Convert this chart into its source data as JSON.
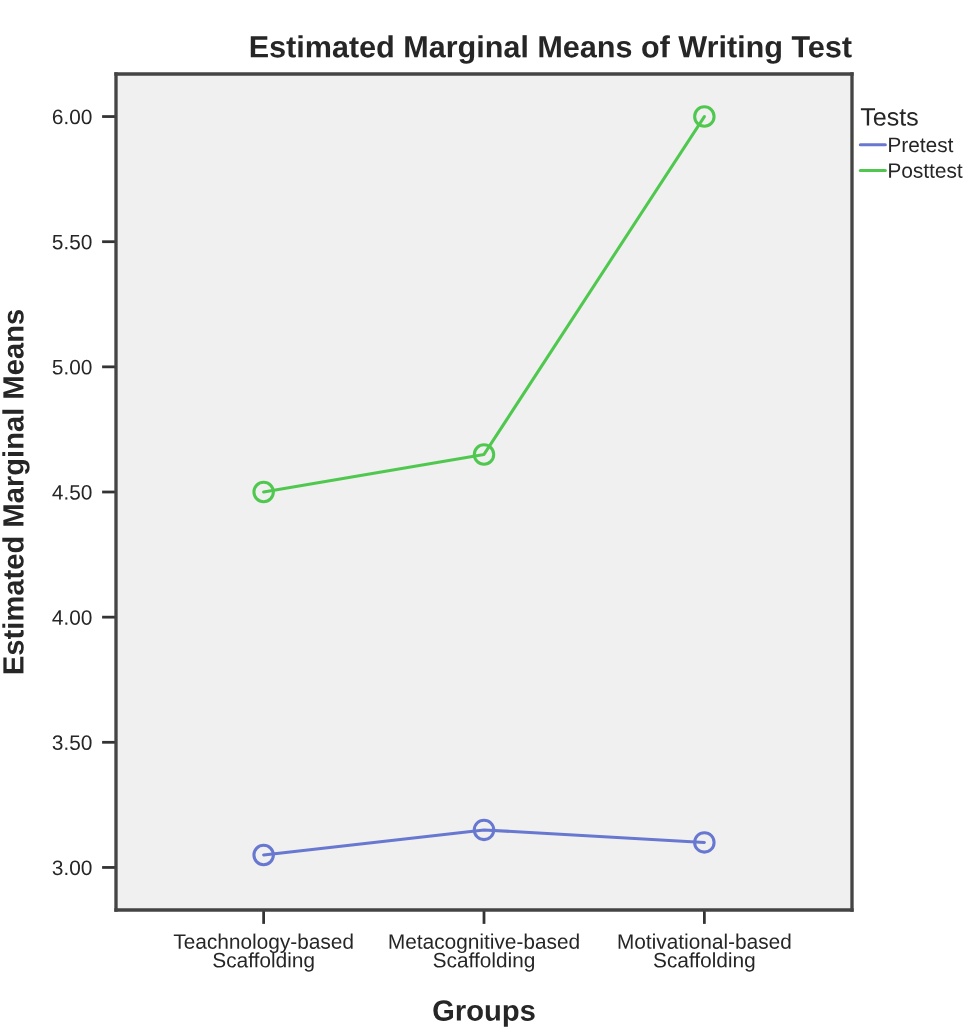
{
  "chart_data": {
    "type": "line",
    "title": "Estimated Marginal Means of Writing Test",
    "xlabel": "Groups",
    "ylabel": "Estimated Marginal Means",
    "legend_title": "Tests",
    "categories": [
      "Teachnology-based\nScaffolding",
      "Metacognitive-based\nScaffolding",
      "Motivational-based\nScaffolding"
    ],
    "series": [
      {
        "name": "Pretest",
        "color": "#6878d0",
        "values": [
          3.05,
          3.15,
          3.1
        ]
      },
      {
        "name": "Posttest",
        "color": "#50c850",
        "values": [
          4.5,
          4.65,
          6.0
        ]
      }
    ],
    "ylim": [
      2.83,
      6.17
    ],
    "yticks": [
      {
        "value": 3.0,
        "label": "3.00"
      },
      {
        "value": 3.5,
        "label": "3.50"
      },
      {
        "value": 4.0,
        "label": "4.00"
      },
      {
        "value": 4.5,
        "label": "4.50"
      },
      {
        "value": 5.0,
        "label": "5.00"
      },
      {
        "value": 5.5,
        "label": "5.50"
      },
      {
        "value": 6.0,
        "label": "6.00"
      }
    ],
    "grid": false,
    "legend": "top right",
    "marker": "circle",
    "line_style": "solid"
  }
}
